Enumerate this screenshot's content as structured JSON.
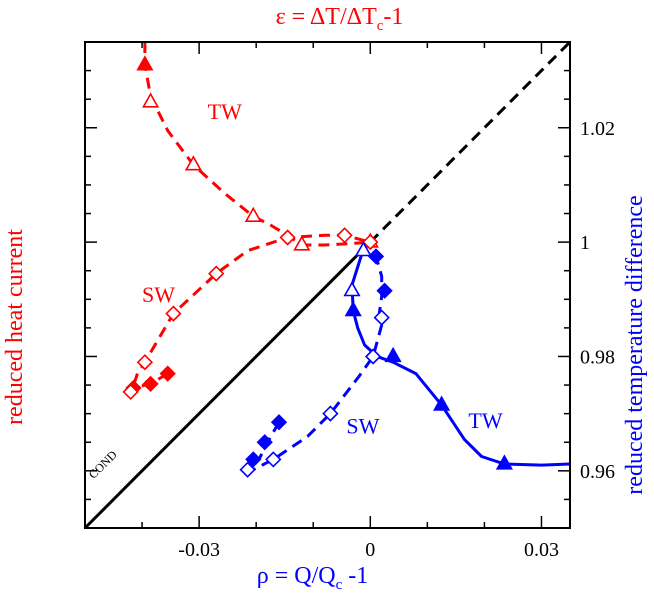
{
  "chart_data": {
    "type": "line",
    "title_top": {
      "main": "ε = ΔT/ΔT",
      "sub": "c",
      "tail": "-1"
    },
    "xlabel": {
      "main": "ρ = Q/Q",
      "sub": "c",
      "tail": " -1"
    },
    "ylabel_left": "reduced heat current",
    "ylabel_right": "reduced temperature difference",
    "xlim": [
      -0.05,
      0.035
    ],
    "ylim_left": [
      -0.05,
      0.035
    ],
    "ylim_right": [
      0.95,
      1.035
    ],
    "x_ticks": [
      {
        "value": -0.03,
        "label": "-0.03"
      },
      {
        "value": 0,
        "label": "0"
      },
      {
        "value": 0.03,
        "label": "0.03"
      }
    ],
    "y_right_ticks": [
      {
        "value": 0.96,
        "label": "0.96"
      },
      {
        "value": 0.98,
        "label": "0.98"
      },
      {
        "value": 1.0,
        "label": "1"
      },
      {
        "value": 1.02,
        "label": "1.02"
      }
    ],
    "colors": {
      "red": "#ff0000",
      "blue": "#0000ff",
      "black": "#000000"
    },
    "annotations": [
      {
        "text": "TW",
        "color": "#ff0000",
        "x": -0.0285,
        "y": 1.0215
      },
      {
        "text": "SW",
        "color": "#ff0000",
        "x": -0.04,
        "y": 0.9895
      },
      {
        "text": "SW",
        "color": "#0000ff",
        "x": -0.0042,
        "y": 0.9665
      },
      {
        "text": "TW",
        "color": "#0000ff",
        "x": 0.0172,
        "y": 0.9675
      },
      {
        "text": "COND",
        "color": "#000000",
        "x": -0.0485,
        "y": 0.9585,
        "rotate": -45
      }
    ],
    "series": [
      {
        "name": "COND",
        "color": "#000000",
        "style": "solid",
        "line": [
          [
            -0.05,
            0.95
          ],
          [
            0.0,
            1.0
          ]
        ]
      },
      {
        "name": "COND extension",
        "color": "#000000",
        "style": "dashed",
        "line": [
          [
            0.0,
            1.0
          ],
          [
            0.035,
            1.035
          ]
        ]
      },
      {
        "name": "TW heat current",
        "color": "#ff0000",
        "style": "dashed",
        "line": [
          [
            -0.0395,
            1.035
          ],
          [
            -0.0395,
            1.031
          ],
          [
            -0.0385,
            1.0255
          ],
          [
            -0.0355,
            1.0195
          ],
          [
            -0.031,
            1.0135
          ],
          [
            -0.0255,
            1.0085
          ],
          [
            -0.0205,
            1.0045
          ],
          [
            -0.0175,
            1.003
          ],
          [
            -0.0145,
            1.0012
          ],
          [
            -0.012,
            0.9995
          ],
          [
            -0.008,
            0.9995
          ],
          [
            -0.004,
            0.9997
          ],
          [
            0.0,
            1.0
          ]
        ],
        "markers": [
          {
            "shape": "triangle",
            "filled": true,
            "points": [
              [
                -0.0395,
                1.031
              ]
            ]
          },
          {
            "shape": "triangle",
            "filled": false,
            "points": [
              [
                -0.0385,
                1.0245
              ],
              [
                -0.031,
                1.0135
              ],
              [
                -0.0205,
                1.0045
              ],
              [
                -0.012,
                0.9995
              ],
              [
                0.0,
                1.0
              ]
            ]
          }
        ]
      },
      {
        "name": "SW heat current",
        "color": "#ff0000",
        "style": "dashed",
        "line": [
          [
            -0.0355,
            0.977
          ],
          [
            -0.0385,
            0.9752
          ],
          [
            -0.0415,
            0.9745
          ],
          [
            -0.042,
            0.9735
          ],
          [
            -0.0408,
            0.977
          ],
          [
            -0.0395,
            0.979
          ],
          [
            -0.0345,
            0.9875
          ],
          [
            -0.027,
            0.9945
          ],
          [
            -0.0215,
            0.9985
          ],
          [
            -0.0145,
            1.0008
          ],
          [
            -0.008,
            1.0012
          ],
          [
            -0.0045,
            1.0012
          ],
          [
            0.0,
            1.0
          ]
        ],
        "markers": [
          {
            "shape": "diamond",
            "filled": true,
            "points": [
              [
                -0.0355,
                0.977
              ],
              [
                -0.0385,
                0.9752
              ],
              [
                -0.0415,
                0.9745
              ]
            ]
          },
          {
            "shape": "diamond",
            "filled": false,
            "points": [
              [
                -0.042,
                0.9738
              ],
              [
                -0.0395,
                0.979
              ],
              [
                -0.0345,
                0.9875
              ],
              [
                -0.027,
                0.9945
              ],
              [
                -0.0145,
                1.0008
              ],
              [
                -0.0045,
                1.0012
              ],
              [
                0.0,
                1.0
              ]
            ]
          }
        ]
      },
      {
        "name": "TW temperature difference",
        "color": "#0000ff",
        "style": "solid",
        "line": [
          [
            -0.0012,
            0.9988
          ],
          [
            -0.0032,
            0.9925
          ],
          [
            -0.003,
            0.988
          ],
          [
            -0.0022,
            0.985
          ],
          [
            -0.001,
            0.982
          ],
          [
            0.0012,
            0.98
          ],
          [
            0.004,
            0.979
          ],
          [
            0.008,
            0.977
          ],
          [
            0.0125,
            0.9715
          ],
          [
            0.0165,
            0.9655
          ],
          [
            0.0195,
            0.9625
          ],
          [
            0.0235,
            0.9612
          ],
          [
            0.03,
            0.961
          ],
          [
            0.035,
            0.9612
          ]
        ],
        "markers": [
          {
            "shape": "triangle",
            "filled": true,
            "points": [
              [
                -0.003,
                0.988
              ],
              [
                0.004,
                0.98
              ],
              [
                0.0125,
                0.9715
              ],
              [
                0.0235,
                0.9612
              ]
            ]
          },
          {
            "shape": "triangle",
            "filled": false,
            "points": [
              [
                -0.0032,
                0.9915
              ],
              [
                -0.0012,
                0.9985
              ]
            ]
          }
        ]
      },
      {
        "name": "SW temperature difference",
        "color": "#0000ff",
        "style": "dashed",
        "line": [
          [
            -0.016,
            0.9685
          ],
          [
            -0.018,
            0.965
          ],
          [
            -0.0195,
            0.962
          ],
          [
            -0.0215,
            0.9605
          ],
          [
            -0.0205,
            0.9602
          ],
          [
            -0.017,
            0.962
          ],
          [
            -0.011,
            0.966
          ],
          [
            -0.007,
            0.97
          ],
          [
            -0.002,
            0.9765
          ],
          [
            0.0005,
            0.98
          ],
          [
            0.002,
            0.9855
          ],
          [
            0.0015,
            0.987
          ],
          [
            0.002,
            0.9905
          ],
          [
            0.002,
            0.994
          ],
          [
            0.001,
            0.9975
          ],
          [
            0.0,
            1.0
          ]
        ],
        "markers": [
          {
            "shape": "diamond",
            "filled": true,
            "points": [
              [
                -0.016,
                0.9685
              ],
              [
                -0.0185,
                0.965
              ],
              [
                -0.0205,
                0.962
              ],
              [
                0.0025,
                0.9915
              ],
              [
                0.001,
                0.9975
              ]
            ]
          },
          {
            "shape": "diamond",
            "filled": false,
            "points": [
              [
                -0.0215,
                0.9602
              ],
              [
                -0.017,
                0.962
              ],
              [
                -0.007,
                0.97
              ],
              [
                0.0005,
                0.98
              ],
              [
                0.002,
                0.9868
              ]
            ]
          }
        ]
      }
    ]
  }
}
